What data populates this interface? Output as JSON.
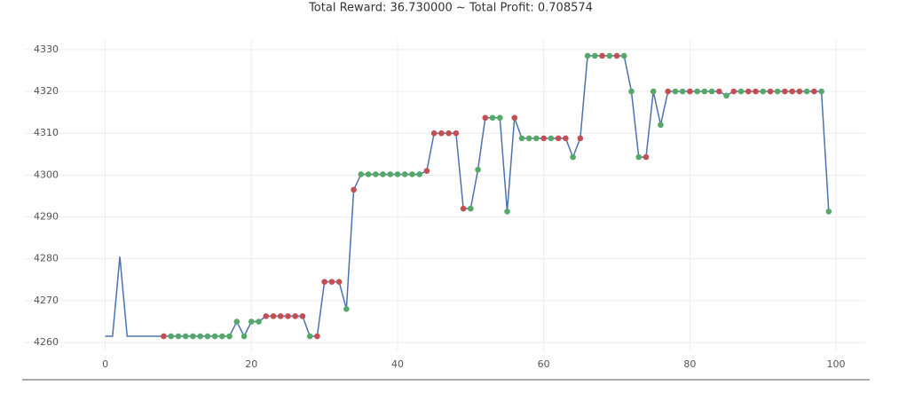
{
  "chart_data": {
    "type": "line",
    "title": "Total Reward: 36.730000 ~ Total Profit: 0.708574",
    "xlim": [
      -11,
      104
    ],
    "xticks": [
      0,
      20,
      40,
      60,
      80,
      100
    ],
    "ylim": [
      4257.9,
      4332.3
    ],
    "yticks": [
      4260,
      4270,
      4280,
      4290,
      4300,
      4310,
      4320,
      4330
    ],
    "grid": true,
    "x": [
      0,
      1,
      2,
      3,
      4,
      5,
      6,
      7,
      8,
      9,
      10,
      11,
      12,
      13,
      14,
      15,
      16,
      17,
      18,
      19,
      20,
      21,
      22,
      23,
      24,
      25,
      26,
      27,
      28,
      29,
      30,
      31,
      32,
      33,
      34,
      35,
      36,
      37,
      38,
      39,
      40,
      41,
      42,
      43,
      44,
      45,
      46,
      47,
      48,
      49,
      50,
      51,
      52,
      53,
      54,
      55,
      56,
      57,
      58,
      59,
      60,
      61,
      62,
      63,
      64,
      65,
      66,
      67,
      68,
      69,
      70,
      71,
      72,
      73,
      74,
      75,
      76,
      77,
      78,
      79,
      80,
      81,
      82,
      83,
      84,
      85,
      86,
      87,
      88,
      89,
      90,
      91,
      92,
      93,
      94,
      95,
      96,
      97,
      98,
      99
    ],
    "series": [
      {
        "color": "#4c72b0",
        "values": [
          4261.5,
          4261.5,
          4280.5,
          4261.5,
          4261.5,
          4261.5,
          4261.5,
          4261.5,
          4261.5,
          4261.5,
          4261.5,
          4261.5,
          4261.5,
          4261.5,
          4261.5,
          4261.5,
          4261.5,
          4261.5,
          4265,
          4261.5,
          4265,
          4265,
          4266.3,
          4266.3,
          4266.3,
          4266.3,
          4266.3,
          4266.3,
          4261.5,
          4261.5,
          4274.5,
          4274.5,
          4274.5,
          4268,
          4296.5,
          4300.2,
          4300.2,
          4300.2,
          4300.2,
          4300.2,
          4300.2,
          4300.2,
          4300.2,
          4300.2,
          4301,
          4310,
          4310,
          4310,
          4310,
          4292,
          4292,
          4301.3,
          4313.7,
          4313.7,
          4313.7,
          4291.3,
          4313.7,
          4308.8,
          4308.8,
          4308.8,
          4308.8,
          4308.8,
          4308.8,
          4308.8,
          4304.3,
          4308.8,
          4328.5,
          4328.5,
          4328.5,
          4328.5,
          4328.5,
          4328.5,
          4320,
          4304.3,
          4304.3,
          4320,
          4312,
          4320,
          4320,
          4320,
          4320,
          4320,
          4320,
          4320,
          4320,
          4319,
          4320,
          4320,
          4320,
          4320,
          4320,
          4320,
          4320,
          4320,
          4320,
          4320,
          4320,
          4320,
          4320,
          4291.3
        ],
        "marker_palette": {
          "r": "#c44e52",
          "g": "#55a868"
        },
        "markers": "--------rgggggggggggggrrrrrrgrrrrgrgggggggggrrrrrrggrgggrgggrgrrgrggrgrgggrggrggrgggrgrgrrgrgrrrgrgg"
      }
    ]
  }
}
